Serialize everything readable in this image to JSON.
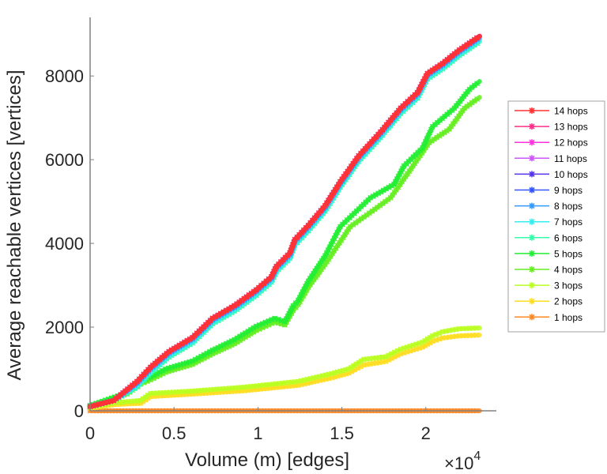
{
  "chart_data": {
    "type": "line",
    "title": "",
    "xlabel": "Volume (m) [edges]",
    "ylabel": "Average reachable vertices [vertices]",
    "x_exponent_label": "×10",
    "x_exponent_power": "4",
    "xlim": [
      0,
      2.42
    ],
    "ylim": [
      0,
      9400
    ],
    "xticks": [
      0,
      0.5,
      1,
      1.5,
      2
    ],
    "xtick_labels": [
      "0",
      "0.5",
      "1",
      "1.5",
      "2"
    ],
    "yticks": [
      0,
      2000,
      4000,
      6000,
      8000
    ],
    "ytick_labels": [
      "0",
      "2000",
      "4000",
      "6000",
      "8000"
    ],
    "grid": false,
    "legend_position": "right",
    "x_units_note": "x values in units of 10^4 edges",
    "series": [
      {
        "name": "14 hops",
        "color": "#ff3333",
        "offset": 0,
        "base": "top"
      },
      {
        "name": "13 hops",
        "color": "#ff2e8a",
        "offset": 0,
        "base": "top"
      },
      {
        "name": "12 hops",
        "color": "#ff33dd",
        "offset": 0,
        "base": "top"
      },
      {
        "name": "11 hops",
        "color": "#cc55ff",
        "offset": 0,
        "base": "top"
      },
      {
        "name": "10 hops",
        "color": "#5533ee",
        "offset": 0,
        "base": "top"
      },
      {
        "name": "9 hops",
        "color": "#3355ff",
        "offset": 0,
        "base": "top"
      },
      {
        "name": "8 hops",
        "color": "#3399ff",
        "offset": -40,
        "base": "top"
      },
      {
        "name": "7 hops",
        "color": "#33eeee",
        "offset": -90,
        "base": "top"
      },
      {
        "name": "6 hops",
        "color": "#33ffaa",
        "offset": -130,
        "base": "top"
      },
      {
        "name": "5 hops",
        "color": "#22ee33",
        "offset": 0,
        "base": "five"
      },
      {
        "name": "4 hops",
        "color": "#66ee22",
        "offset": 0,
        "base": "four"
      },
      {
        "name": "3 hops",
        "color": "#bbff22",
        "offset": 0,
        "base": "three"
      },
      {
        "name": "2 hops",
        "color": "#ffdd22",
        "offset": 0,
        "base": "two"
      },
      {
        "name": "1 hops",
        "color": "#ff8822",
        "offset": 0,
        "base": "one"
      }
    ],
    "base_curves": {
      "top": {
        "x": [
          0,
          0.14,
          0.28,
          0.36,
          0.47,
          0.61,
          0.73,
          0.86,
          0.99,
          1.08,
          1.11,
          1.19,
          1.22,
          1.3,
          1.4,
          1.49,
          1.6,
          1.73,
          1.85,
          1.95,
          2.01,
          2.1,
          2.2,
          2.32
        ],
        "y": [
          100,
          245,
          700,
          1040,
          1415,
          1750,
          2210,
          2510,
          2890,
          3200,
          3450,
          3770,
          4090,
          4430,
          4900,
          5470,
          6090,
          6660,
          7230,
          7600,
          8060,
          8300,
          8620,
          8950
        ]
      },
      "five": {
        "x": [
          0,
          0.22,
          0.3,
          0.36,
          0.45,
          0.61,
          0.73,
          0.86,
          0.99,
          1.1,
          1.16,
          1.21,
          1.24,
          1.3,
          1.4,
          1.49,
          1.67,
          1.81,
          1.87,
          1.98,
          2.04,
          2.17,
          2.26,
          2.32
        ],
        "y": [
          130,
          430,
          700,
          810,
          1000,
          1190,
          1450,
          1700,
          2020,
          2210,
          2130,
          2510,
          2640,
          3100,
          3700,
          4400,
          5090,
          5410,
          5850,
          6280,
          6790,
          7230,
          7680,
          7870
        ]
      },
      "four": {
        "x": [
          0,
          0.22,
          0.3,
          0.36,
          0.45,
          0.61,
          0.73,
          0.86,
          0.99,
          1.1,
          1.16,
          1.21,
          1.24,
          1.3,
          1.4,
          1.55,
          1.68,
          1.79,
          1.88,
          2.02,
          2.14,
          2.23,
          2.32
        ],
        "y": [
          110,
          400,
          640,
          740,
          920,
          1110,
          1360,
          1600,
          1920,
          2120,
          2050,
          2400,
          2540,
          2950,
          3500,
          4400,
          4770,
          5090,
          5600,
          6410,
          6730,
          7230,
          7490
        ]
      },
      "three": {
        "x": [
          0,
          0.14,
          0.3,
          0.36,
          0.61,
          0.92,
          1.24,
          1.44,
          1.54,
          1.63,
          1.76,
          1.85,
          1.98,
          2.04,
          2.1,
          2.2,
          2.32
        ],
        "y": [
          80,
          190,
          245,
          415,
          470,
          565,
          700,
          890,
          1000,
          1230,
          1290,
          1470,
          1640,
          1790,
          1890,
          1960,
          1980
        ]
      },
      "two": {
        "x": [
          0,
          0.14,
          0.3,
          0.36,
          0.61,
          0.92,
          1.24,
          1.44,
          1.54,
          1.63,
          1.76,
          1.85,
          1.98,
          2.04,
          2.1,
          2.2,
          2.32
        ],
        "y": [
          60,
          150,
          180,
          340,
          400,
          480,
          610,
          790,
          900,
          1095,
          1180,
          1360,
          1520,
          1660,
          1740,
          1790,
          1810
        ]
      },
      "one": {
        "x": [
          0,
          2.32
        ],
        "y": [
          0,
          0
        ]
      }
    }
  }
}
